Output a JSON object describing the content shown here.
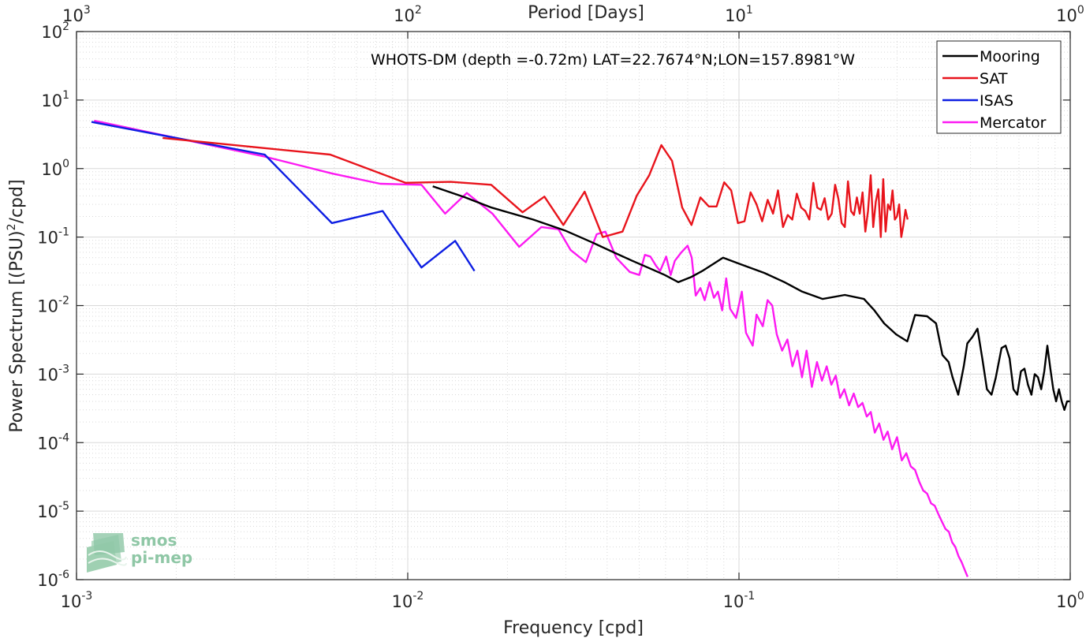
{
  "chart_data": {
    "type": "line",
    "title": "WHOTS-DM (depth =-0.72m) LAT=22.7674°N;LON=157.8981°W",
    "xlabel": "Frequency [cpd]",
    "ylabel": "Power Spectrum [(PSU)",
    "ylabel_sup": "2",
    "ylabel_suffix": "/cpd]",
    "top_xlabel": "Period [Days]",
    "xscale": "log",
    "yscale": "log",
    "xlim": [
      0.001,
      1
    ],
    "ylim": [
      1e-06,
      100
    ],
    "grid": true,
    "legend_position": "top-right",
    "x_ticks": [
      {
        "base": "10",
        "exp": "-3"
      },
      {
        "base": "10",
        "exp": "-2"
      },
      {
        "base": "10",
        "exp": "-1"
      },
      {
        "base": "10",
        "exp": "0"
      }
    ],
    "top_ticks": [
      {
        "base": "10",
        "exp": "3"
      },
      {
        "base": "10",
        "exp": "2"
      },
      {
        "base": "10",
        "exp": "1"
      },
      {
        "base": "10",
        "exp": "0"
      }
    ],
    "y_ticks": [
      {
        "base": "10",
        "exp": "-6"
      },
      {
        "base": "10",
        "exp": "-5"
      },
      {
        "base": "10",
        "exp": "-4"
      },
      {
        "base": "10",
        "exp": "-3"
      },
      {
        "base": "10",
        "exp": "-2"
      },
      {
        "base": "10",
        "exp": "-1"
      },
      {
        "base": "10",
        "exp": "0"
      },
      {
        "base": "10",
        "exp": "1"
      },
      {
        "base": "10",
        "exp": "2"
      }
    ],
    "series": [
      {
        "name": "Mooring",
        "color": "#000000",
        "x": [
          0.0119,
          0.0149,
          0.0179,
          0.0239,
          0.0298,
          0.0358,
          0.0418,
          0.0477,
          0.0537,
          0.0597,
          0.0656,
          0.0716,
          0.0775,
          0.0895,
          0.1014,
          0.1193,
          0.1372,
          0.1551,
          0.1789,
          0.2087,
          0.2385,
          0.2564,
          0.2744,
          0.2982,
          0.3221,
          0.34,
          0.3698,
          0.3936,
          0.4115,
          0.4294,
          0.4413,
          0.4592,
          0.4771,
          0.489,
          0.5069,
          0.5248,
          0.5427,
          0.5606,
          0.5785,
          0.5964,
          0.6202,
          0.6381,
          0.656,
          0.6739,
          0.6918,
          0.7097,
          0.7276,
          0.7455,
          0.7634,
          0.7813,
          0.7992,
          0.8171,
          0.835,
          0.8529,
          0.8708,
          0.8887,
          0.9066,
          0.9245,
          0.9424,
          0.9603,
          0.9782,
          0.9961
        ],
        "y": [
          0.55,
          0.38,
          0.27,
          0.18,
          0.125,
          0.085,
          0.06,
          0.045,
          0.035,
          0.028,
          0.022,
          0.026,
          0.032,
          0.05,
          0.04,
          0.03,
          0.022,
          0.016,
          0.0125,
          0.0143,
          0.0125,
          0.0085,
          0.0055,
          0.0038,
          0.003,
          0.0073,
          0.007,
          0.0055,
          0.0019,
          0.0015,
          0.0009,
          0.0005,
          0.0013,
          0.0028,
          0.0035,
          0.0046,
          0.0017,
          0.0006,
          0.0005,
          0.0009,
          0.0024,
          0.0026,
          0.0017,
          0.0006,
          0.0005,
          0.0011,
          0.0012,
          0.0007,
          0.0005,
          0.001,
          0.0009,
          0.0006,
          0.0011,
          0.0026,
          0.0012,
          0.0006,
          0.0004,
          0.0006,
          0.0004,
          0.0003,
          0.0004,
          0.0004
        ]
      },
      {
        "name": "SAT",
        "color": "#e8141c",
        "x": [
          0.00182,
          0.00364,
          0.00583,
          0.00984,
          0.01348,
          0.01786,
          0.02222,
          0.02586,
          0.0295,
          0.0342,
          0.0388,
          0.0445,
          0.0491,
          0.0536,
          0.0583,
          0.0628,
          0.0674,
          0.0719,
          0.0765,
          0.0811,
          0.0856,
          0.0902,
          0.0947,
          0.0993,
          0.1039,
          0.1084,
          0.113,
          0.1175,
          0.1221,
          0.1267,
          0.1312,
          0.1358,
          0.1403,
          0.1449,
          0.1495,
          0.154,
          0.1586,
          0.1631,
          0.1677,
          0.1723,
          0.1768,
          0.1814,
          0.1859,
          0.1905,
          0.1951,
          0.1996,
          0.2042,
          0.2087,
          0.2133,
          0.2179,
          0.2224,
          0.227,
          0.2315,
          0.2361,
          0.2407,
          0.2452,
          0.2498,
          0.2543,
          0.2589,
          0.2635,
          0.268,
          0.2726,
          0.2771,
          0.2817,
          0.2863,
          0.2908,
          0.2954,
          0.2999,
          0.3045,
          0.3091,
          0.3136,
          0.3182,
          0.3228
        ],
        "y": [
          2.8,
          2.0,
          1.6,
          0.62,
          0.64,
          0.58,
          0.23,
          0.39,
          0.15,
          0.46,
          0.1,
          0.12,
          0.4,
          0.8,
          2.2,
          1.3,
          0.27,
          0.15,
          0.38,
          0.28,
          0.28,
          0.63,
          0.48,
          0.16,
          0.17,
          0.45,
          0.3,
          0.17,
          0.35,
          0.22,
          0.48,
          0.14,
          0.21,
          0.18,
          0.43,
          0.27,
          0.24,
          0.18,
          0.62,
          0.27,
          0.25,
          0.37,
          0.18,
          0.22,
          0.58,
          0.36,
          0.16,
          0.14,
          0.65,
          0.24,
          0.21,
          0.38,
          0.22,
          0.45,
          0.12,
          0.24,
          0.8,
          0.14,
          0.33,
          0.5,
          0.1,
          0.7,
          0.12,
          0.3,
          0.25,
          0.48,
          0.18,
          0.2,
          0.3,
          0.1,
          0.15,
          0.25,
          0.18
        ]
      },
      {
        "name": "ISAS",
        "color": "#0d1ee3",
        "x": [
          0.00111,
          0.00185,
          0.0037,
          0.0059,
          0.0084,
          0.011,
          0.0139,
          0.0159
        ],
        "y": [
          4.8,
          3.0,
          1.6,
          0.16,
          0.24,
          0.036,
          0.088,
          0.032
        ]
      },
      {
        "name": "Mercator",
        "color": "#fc1af2",
        "x": [
          0.00113,
          0.00369,
          0.0059,
          0.00826,
          0.011,
          0.01297,
          0.01508,
          0.01802,
          0.0217,
          0.02533,
          0.02851,
          0.031,
          0.0345,
          0.0372,
          0.0395,
          0.0426,
          0.0468,
          0.05,
          0.052,
          0.054,
          0.0562,
          0.0578,
          0.0603,
          0.0622,
          0.064,
          0.067,
          0.07,
          0.072,
          0.074,
          0.0765,
          0.0788,
          0.0815,
          0.084,
          0.0864,
          0.089,
          0.0915,
          0.094,
          0.098,
          0.102,
          0.105,
          0.11,
          0.113,
          0.118,
          0.122,
          0.126,
          0.13,
          0.135,
          0.14,
          0.145,
          0.15,
          0.155,
          0.16,
          0.166,
          0.172,
          0.178,
          0.184,
          0.19,
          0.196,
          0.202,
          0.208,
          0.215,
          0.222,
          0.229,
          0.236,
          0.243,
          0.25,
          0.257,
          0.265,
          0.273,
          0.281,
          0.29,
          0.3,
          0.31,
          0.32,
          0.33,
          0.34,
          0.35,
          0.36,
          0.37,
          0.38,
          0.39,
          0.4,
          0.41,
          0.42,
          0.43,
          0.44,
          0.45,
          0.46,
          0.47,
          0.48,
          0.49
        ],
        "y": [
          5.0,
          1.5,
          0.85,
          0.6,
          0.58,
          0.22,
          0.44,
          0.22,
          0.072,
          0.14,
          0.13,
          0.065,
          0.043,
          0.11,
          0.12,
          0.05,
          0.031,
          0.028,
          0.055,
          0.052,
          0.038,
          0.032,
          0.052,
          0.028,
          0.045,
          0.06,
          0.075,
          0.05,
          0.014,
          0.018,
          0.012,
          0.022,
          0.013,
          0.016,
          0.0085,
          0.025,
          0.009,
          0.0066,
          0.016,
          0.004,
          0.0026,
          0.0074,
          0.005,
          0.012,
          0.01,
          0.0038,
          0.0022,
          0.0032,
          0.0013,
          0.0022,
          0.0009,
          0.0022,
          0.00065,
          0.0015,
          0.0008,
          0.0013,
          0.0007,
          0.00095,
          0.00045,
          0.0006,
          0.00035,
          0.00052,
          0.00033,
          0.00038,
          0.00024,
          0.00028,
          0.00014,
          0.00019,
          0.00011,
          0.000145,
          8e-05,
          0.00012,
          5.5e-05,
          7e-05,
          4.5e-05,
          4e-05,
          2.7e-05,
          2e-05,
          1.8e-05,
          1.3e-05,
          1.2e-05,
          9e-06,
          7e-06,
          5.5e-06,
          5e-06,
          3.5e-06,
          3e-06,
          2.2e-06,
          1.8e-06,
          1.4e-06,
          1.1e-06
        ]
      }
    ]
  },
  "logo": {
    "line1": "smos",
    "line2": "pi-mep",
    "color": "#8fc7a6"
  }
}
